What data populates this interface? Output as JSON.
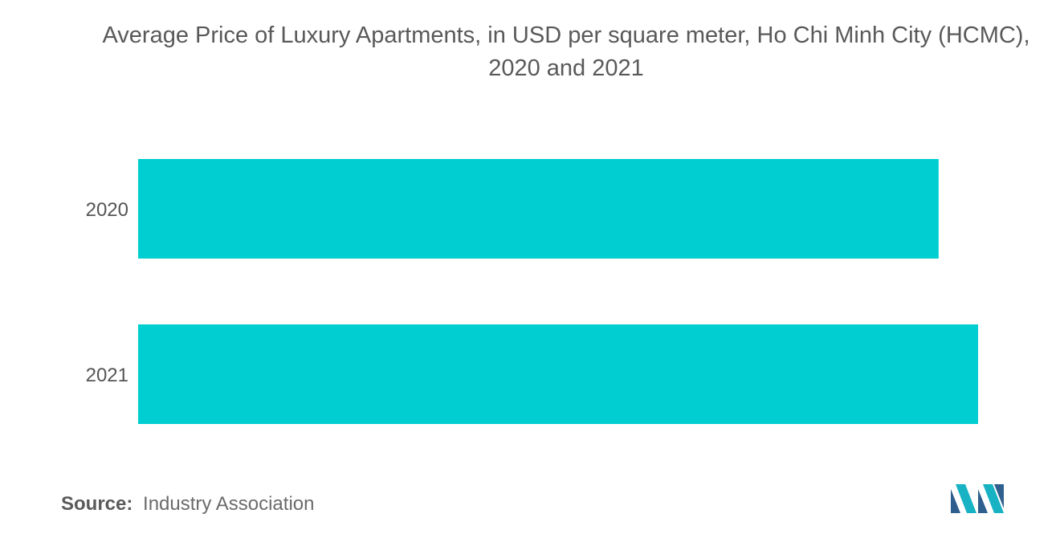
{
  "chart_data": {
    "type": "bar",
    "orientation": "horizontal",
    "title": "Average Price of Luxury Apartments, in USD per square meter, Ho Chi Minh City (HCMC), 2020 and 2021",
    "categories": [
      "2020",
      "2021"
    ],
    "values": [
      0.953,
      1.0
    ],
    "value_note": "relative bar lengths; no value axis or data labels shown",
    "xlabel": "",
    "ylabel": "",
    "grid": false,
    "legend": "none",
    "bar_color": "#00CED1"
  },
  "footer": {
    "source_label": "Source:",
    "source_text": "Industry Association"
  },
  "logo": {
    "icon": "mordor-intelligence-logo-icon"
  }
}
